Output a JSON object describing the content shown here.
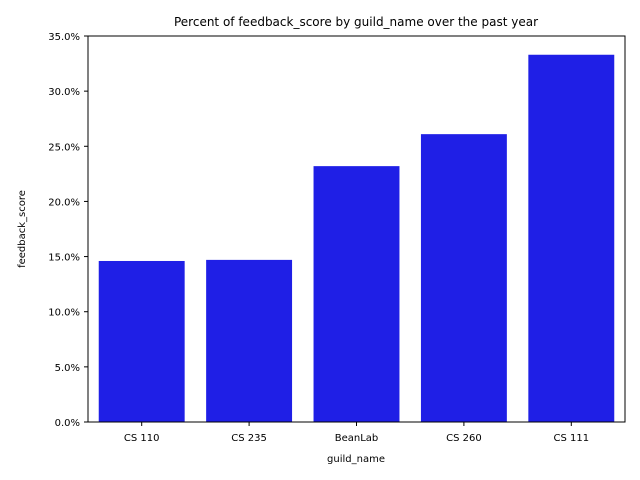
{
  "chart_data": {
    "type": "bar",
    "title": "Percent of feedback_score by guild_name over the past year",
    "xlabel": "guild_name",
    "ylabel": "feedback_score",
    "categories": [
      "CS 110",
      "CS 235",
      "BeanLab",
      "CS 260",
      "CS 111"
    ],
    "values": [
      14.6,
      14.7,
      23.2,
      26.1,
      33.3
    ],
    "value_unit": "percent",
    "ylim": [
      0,
      35
    ],
    "yticks": [
      0,
      5,
      10,
      15,
      20,
      25,
      30,
      35
    ],
    "ytick_labels": [
      "0.0%",
      "5.0%",
      "10.0%",
      "15.0%",
      "20.0%",
      "25.0%",
      "30.0%",
      "35.0%"
    ],
    "grid": false,
    "legend": "none",
    "bar_color": "#1f1fe6"
  }
}
